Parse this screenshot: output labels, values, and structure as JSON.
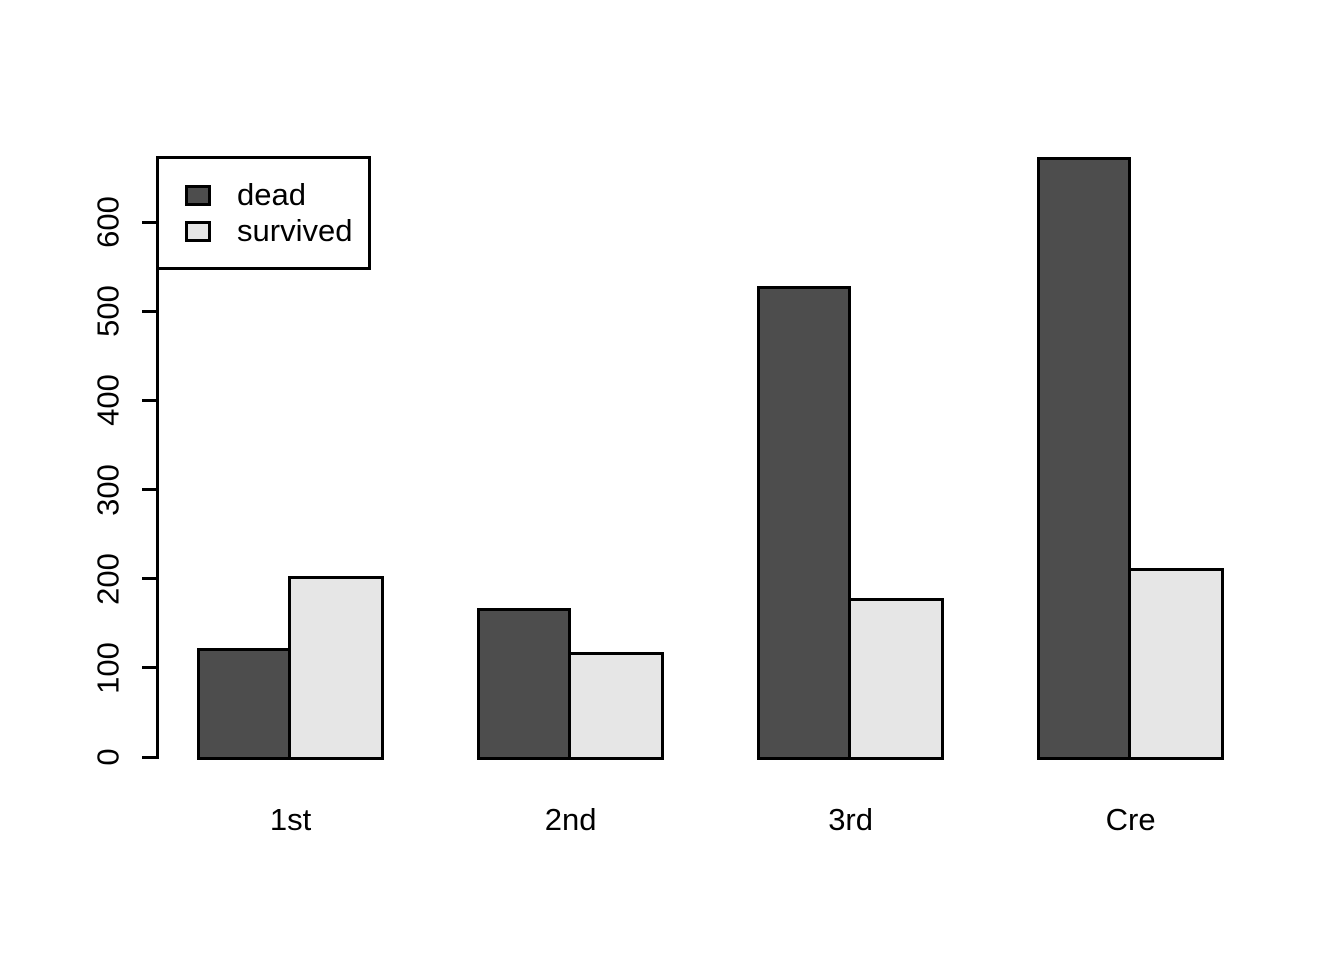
{
  "figure": {
    "background": "#FFFFFF",
    "axis_color": "#000000",
    "bar_border_color": "#000000"
  },
  "chart_data": {
    "type": "bar",
    "title": "",
    "xlabel": "",
    "ylabel": "",
    "categories": [
      "1st",
      "2nd",
      "3rd",
      "Cre"
    ],
    "series": [
      {
        "name": "dead",
        "color": "#4D4D4D",
        "values": [
          122,
          167,
          528,
          673
        ]
      },
      {
        "name": "survived",
        "color": "#E6E6E6",
        "values": [
          203,
          118,
          178,
          212
        ]
      }
    ],
    "y_ticks": [
      0,
      100,
      200,
      300,
      400,
      500,
      600
    ],
    "ylim": [
      0,
      690
    ],
    "grid": false,
    "legend": {
      "position": "top-left",
      "labels": [
        "dead",
        "survived"
      ]
    }
  }
}
